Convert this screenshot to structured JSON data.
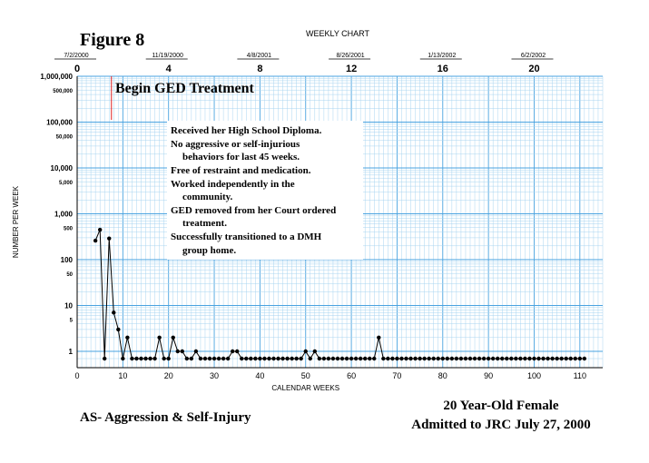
{
  "figure_label": "Figure 8",
  "top_axis": {
    "title": "WEEKLY CHART",
    "dates": [
      "7/2/2000",
      "11/19/2000",
      "4/8/2001",
      "8/26/2001",
      "1/13/2002",
      "6/2/2002"
    ],
    "ticks": [
      "0",
      "4",
      "8",
      "12",
      "16",
      "20"
    ]
  },
  "treatment_marker": {
    "label": "Begin GED Treatment",
    "week": 7.5,
    "color": "#e02020"
  },
  "notes": [
    "Received her High School Diploma.",
    "No aggressive or self-injurious",
    "behaviors for last 45 weeks.",
    "Free of restraint and medication.",
    "Worked independently in the",
    "community.",
    "GED removed from her Court ordered",
    "treatment.",
    "Successfully transitioned to a DMH",
    "group home."
  ],
  "footer": {
    "left": "AS- Aggression & Self-Injury",
    "right_line1": "20 Year-Old Female",
    "right_line2": "Admitted to JRC July 27, 2000"
  },
  "colors": {
    "grid": "#a8d4f0",
    "grid_major": "#4aa3e0",
    "line": "#000000",
    "marker": "#e02020"
  },
  "chart_data": {
    "type": "line",
    "title": "",
    "xlabel": "CALENDAR WEEKS",
    "ylabel": "NUMBER PER WEEK",
    "y_scale": "log",
    "xlim": [
      0,
      115
    ],
    "ylim": [
      0.7,
      1000000
    ],
    "x_ticks": [
      0,
      10,
      20,
      30,
      40,
      50,
      60,
      70,
      80,
      90,
      100,
      110
    ],
    "y_tick_labels": [
      "1,000,000",
      "500,000",
      "100,000",
      "50,000",
      "10,000",
      "5,000",
      "1,000",
      "500",
      "100",
      "50",
      "10",
      "5",
      "1"
    ],
    "series": [
      {
        "x": [
          4,
          5,
          6,
          7,
          8,
          9,
          10,
          11,
          12,
          13,
          14,
          15,
          16,
          17,
          18,
          19,
          20,
          21,
          22,
          23,
          24,
          25,
          26,
          27,
          28,
          29,
          30,
          31,
          32,
          33,
          34,
          35,
          36,
          37,
          38,
          39,
          40,
          41,
          42,
          43,
          44,
          45,
          46,
          47,
          48,
          49,
          50,
          51,
          52,
          53,
          54,
          55,
          56,
          57,
          58,
          59,
          60,
          61,
          62,
          63,
          64,
          65,
          66,
          67,
          68,
          69,
          70,
          71,
          72,
          73,
          74,
          75,
          76,
          77,
          78,
          79,
          80,
          81,
          82,
          83,
          84,
          85,
          86,
          87,
          88,
          89,
          90,
          91,
          92,
          93,
          94,
          95,
          96,
          97,
          98,
          99,
          100,
          101,
          102,
          103,
          104,
          105,
          106,
          107,
          108,
          109,
          110,
          111
        ],
        "y": [
          260,
          450,
          0,
          290,
          7,
          3,
          0,
          2,
          0,
          0,
          0,
          0,
          0,
          0,
          2,
          0,
          0,
          2,
          1,
          1,
          0,
          0,
          1,
          0,
          0,
          0,
          0,
          0,
          0,
          0,
          1,
          1,
          0,
          0,
          0,
          0,
          0,
          0,
          0,
          0,
          0,
          0,
          0,
          0,
          0,
          0,
          1,
          0,
          1,
          0,
          0,
          0,
          0,
          0,
          0,
          0,
          0,
          0,
          0,
          0,
          0,
          0,
          2,
          0,
          0,
          0,
          0,
          0,
          0,
          0,
          0,
          0,
          0,
          0,
          0,
          0,
          0,
          0,
          0,
          0,
          0,
          0,
          0,
          0,
          0,
          0,
          0,
          0,
          0,
          0,
          0,
          0,
          0,
          0,
          0,
          0,
          0,
          0,
          0,
          0,
          0,
          0,
          0,
          0,
          0,
          0,
          0,
          0
        ]
      }
    ]
  }
}
